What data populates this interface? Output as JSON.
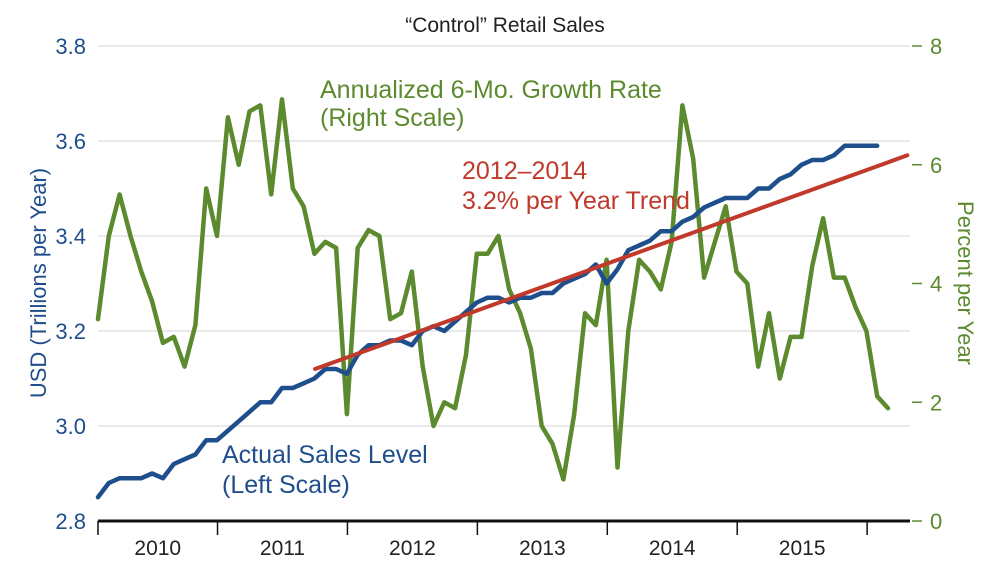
{
  "chart_data": {
    "type": "line",
    "title": "“Control” Retail Sales",
    "left_axis": {
      "label": "USD (Trillions per Year)",
      "min": 2.8,
      "max": 3.8,
      "ticks": [
        "2.8",
        "3.0",
        "3.2",
        "3.4",
        "3.6",
        "3.8"
      ],
      "color": "#1f4e8c"
    },
    "right_axis": {
      "label": "Percent per Year",
      "min": 0,
      "max": 8,
      "ticks": [
        "0",
        "2",
        "4",
        "6",
        "8"
      ],
      "color": "#5c8a2e"
    },
    "x_axis": {
      "min": 2009.58,
      "max": 2015.83,
      "years": [
        "2010",
        "2011",
        "2012",
        "2013",
        "2014",
        "2015"
      ],
      "year_starts": [
        2009.58,
        2010.5,
        2011.5,
        2012.5,
        2013.5,
        2014.5,
        2015.5
      ]
    },
    "grid": "horizontal",
    "annotations": {
      "growth": [
        "Annualized 6-Mo. Growth Rate",
        "(Right Scale)"
      ],
      "trend": [
        "2012–2014",
        "3.2% per Year Trend"
      ],
      "sales": [
        "Actual Sales Level",
        "(Left Scale)"
      ]
    },
    "series": [
      {
        "name": "Actual Sales Level",
        "axis": "left",
        "color": "#1f4e8c",
        "x_start": 2009.58,
        "x_step": 0.0833,
        "values": [
          2.85,
          2.88,
          2.89,
          2.89,
          2.89,
          2.9,
          2.89,
          2.92,
          2.93,
          2.94,
          2.97,
          2.97,
          2.99,
          3.01,
          3.03,
          3.05,
          3.05,
          3.08,
          3.08,
          3.09,
          3.1,
          3.12,
          3.12,
          3.11,
          3.15,
          3.17,
          3.17,
          3.18,
          3.18,
          3.17,
          3.2,
          3.21,
          3.2,
          3.22,
          3.24,
          3.26,
          3.27,
          3.27,
          3.26,
          3.27,
          3.27,
          3.28,
          3.28,
          3.3,
          3.31,
          3.32,
          3.34,
          3.3,
          3.33,
          3.37,
          3.38,
          3.39,
          3.41,
          3.41,
          3.43,
          3.44,
          3.46,
          3.47,
          3.48,
          3.48,
          3.48,
          3.5,
          3.5,
          3.52,
          3.53,
          3.55,
          3.56,
          3.56,
          3.57,
          3.59,
          3.59,
          3.59,
          3.59
        ]
      },
      {
        "name": "2012–2014 3.2% per Year Trend",
        "axis": "left",
        "color": "#c0392b",
        "x": [
          2011.25,
          2015.81
        ],
        "values": [
          3.12,
          3.57
        ]
      },
      {
        "name": "Annualized 6-Mo. Growth Rate",
        "axis": "right",
        "color": "#5c8a2e",
        "x_start": 2009.58,
        "x_step": 0.0833,
        "values": [
          3.4,
          4.8,
          5.5,
          4.8,
          4.2,
          3.7,
          3.0,
          3.1,
          2.6,
          3.3,
          5.6,
          4.8,
          6.8,
          6.0,
          6.9,
          7.0,
          5.5,
          7.1,
          5.6,
          5.3,
          4.5,
          4.7,
          4.6,
          1.8,
          4.6,
          4.9,
          4.8,
          3.4,
          3.5,
          4.2,
          2.6,
          1.6,
          2.0,
          1.9,
          2.8,
          4.5,
          4.5,
          4.8,
          3.9,
          3.5,
          2.9,
          1.6,
          1.3,
          0.7,
          1.8,
          3.5,
          3.3,
          4.4,
          0.9,
          3.2,
          4.4,
          4.2,
          3.9,
          4.7,
          7.0,
          6.1,
          4.1,
          4.7,
          5.3,
          4.2,
          4.0,
          2.6,
          3.5,
          2.4,
          3.1,
          3.1,
          4.3,
          5.1,
          4.1,
          4.1,
          3.6,
          3.2,
          2.1,
          1.9
        ]
      }
    ]
  }
}
